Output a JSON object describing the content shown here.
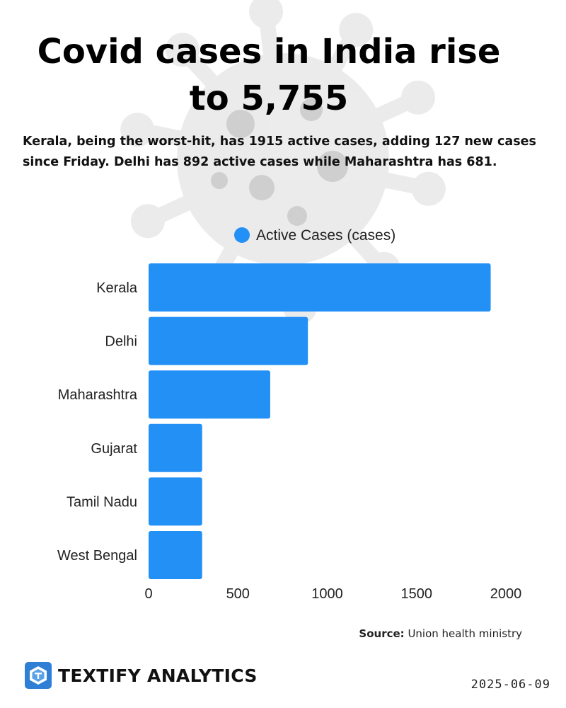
{
  "header": {
    "title": "Covid cases in India rise to 5,755",
    "subtitle": "Kerala, being the worst-hit, has 1915 active cases, adding 127 new cases since Friday. Delhi has 892 active cases while Maharashtra has 681."
  },
  "chart_data": {
    "type": "bar",
    "orientation": "horizontal",
    "categories": [
      "Kerala",
      "Delhi",
      "Maharashtra",
      "Gujarat",
      "Tamil Nadu",
      "West Bengal"
    ],
    "series": [
      {
        "name": "Active Cases (cases)",
        "values": [
          1915,
          892,
          681,
          300,
          300,
          300
        ]
      }
    ],
    "xlim": [
      0,
      2000
    ],
    "xticks": [
      "0",
      "500",
      "1000",
      "1500",
      "2000"
    ],
    "legend_position": "top-center",
    "grid": false,
    "bar_color": "#2390f6"
  },
  "footer": {
    "source_label": "Source:",
    "source_text": "Union health ministry",
    "brand": "TEXTIFY ANALYTICS",
    "date": "2025-06-09"
  },
  "colors": {
    "accent": "#2390f6",
    "virus_watermark": "#dcdcdc",
    "logo_blue": "#2f7fd6"
  }
}
